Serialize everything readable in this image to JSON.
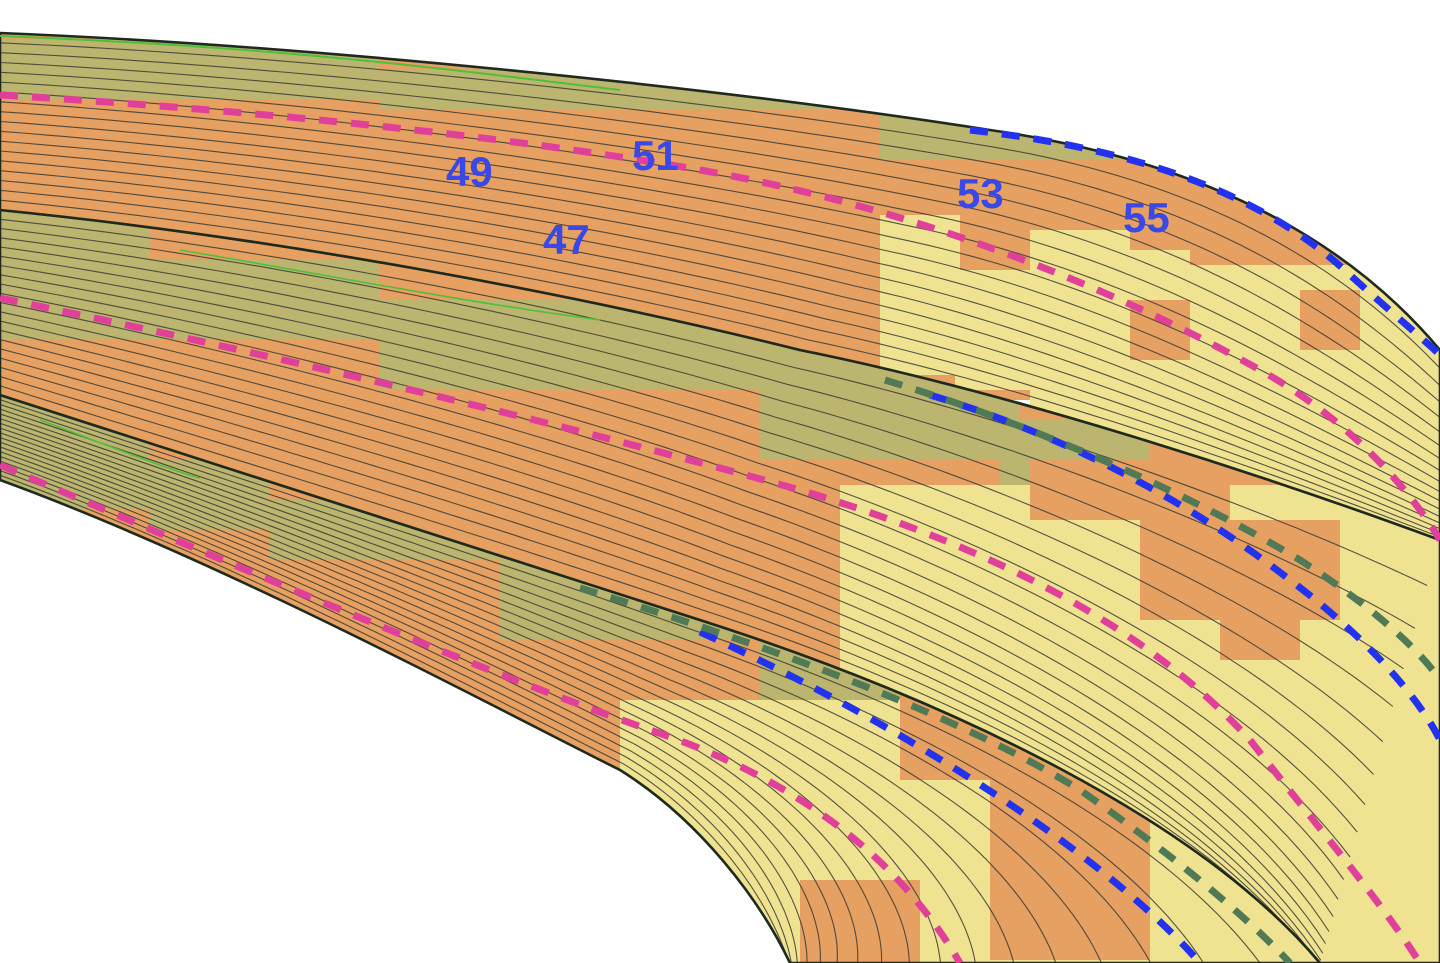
{
  "figure": {
    "colors": {
      "background": "#ffffff",
      "zone_orange": "#e5a062",
      "zone_olive": "#bbb56f",
      "zone_yellow": "#efe391",
      "zone_mint": "#bfe7b9",
      "contour": "#3a3a33",
      "bundle_edge": "#1f2a1f",
      "edge_green": "#4fbf3a",
      "dash_pink": "#e0409a",
      "dash_blue": "#2332ee",
      "dash_green": "#4f7a55",
      "label": "#3a48e8"
    },
    "labels": [
      {
        "name": "label-47",
        "text": "47"
      },
      {
        "name": "label-49",
        "text": "49"
      },
      {
        "name": "label-51",
        "text": "51"
      },
      {
        "name": "label-53",
        "text": "53"
      },
      {
        "name": "label-55",
        "text": "55"
      }
    ],
    "bands": {
      "top": {
        "name": "upper-band",
        "zones": [
          "olive",
          "orange",
          "olive",
          "orange",
          "yellow"
        ]
      },
      "middle": {
        "name": "middle-band",
        "zones": [
          "olive",
          "orange",
          "olive",
          "orange",
          "yellow"
        ]
      },
      "bottom": {
        "name": "lower-band",
        "zones": [
          "olive",
          "orange",
          "olive",
          "orange",
          "yellow",
          "mint"
        ]
      }
    }
  }
}
